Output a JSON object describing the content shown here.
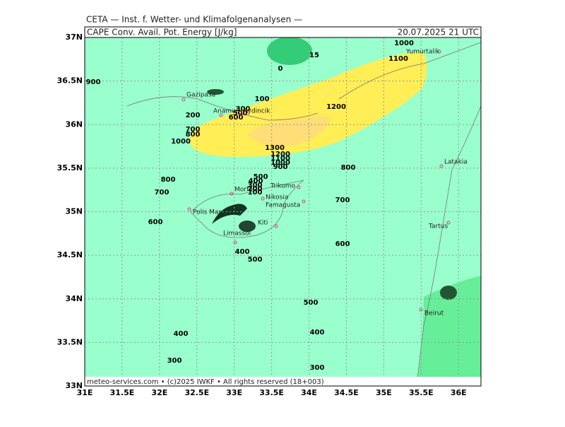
{
  "header": {
    "institute": "CETA — Inst. f. Wetter- und Klimafolgenanalysen —",
    "field": "CAPE Conv. Avail. Pot. Energy [J/kg]",
    "valid": "20.07.2025 21 UTC",
    "footer": "meteo-services.com • (c)2025 IWKF • All rights reserved (18+003)"
  },
  "map": {
    "xlim": [
      31,
      36.3
    ],
    "ylim": [
      33,
      37
    ],
    "grid": true,
    "xticks": [
      {
        "value": 31,
        "label": "31E"
      },
      {
        "value": 31.5,
        "label": "31.5E"
      },
      {
        "value": 32,
        "label": "32E"
      },
      {
        "value": 32.5,
        "label": "32.5E"
      },
      {
        "value": 33,
        "label": "33E"
      },
      {
        "value": 33.5,
        "label": "33.5E"
      },
      {
        "value": 34,
        "label": "34E"
      },
      {
        "value": 34.5,
        "label": "34.5E"
      },
      {
        "value": 35,
        "label": "35E"
      },
      {
        "value": 35.5,
        "label": "35.5E"
      },
      {
        "value": 36,
        "label": "36E"
      }
    ],
    "yticks": [
      {
        "value": 33,
        "label": "33N"
      },
      {
        "value": 33.5,
        "label": "33.5N"
      },
      {
        "value": 34,
        "label": "34N"
      },
      {
        "value": 34.5,
        "label": "34.5N"
      },
      {
        "value": 35,
        "label": "35N"
      },
      {
        "value": 35.5,
        "label": "35.5N"
      },
      {
        "value": 36,
        "label": "36N"
      },
      {
        "value": 36.5,
        "label": "36.5N"
      },
      {
        "value": 37,
        "label": "37N"
      }
    ],
    "contour_labels": [
      900,
      200,
      700,
      800,
      1000,
      100,
      300,
      500,
      600,
      1200,
      1300,
      1200,
      1100,
      1000,
      900,
      1000,
      1100,
      800,
      800,
      700,
      600,
      700,
      600,
      500,
      400,
      300,
      200,
      100,
      400,
      500,
      500,
      400,
      400,
      300,
      300,
      0,
      15
    ],
    "places": [
      "Gazipasa",
      "Anamur",
      "Aydincik",
      "Yumurtalik",
      "Latakia",
      "Morfo",
      "Trikomo",
      "Nikosia",
      "Famagusta",
      "Polis Mar",
      "Kiti",
      "Limassol",
      "Tartus",
      "Beirut"
    ]
  }
}
